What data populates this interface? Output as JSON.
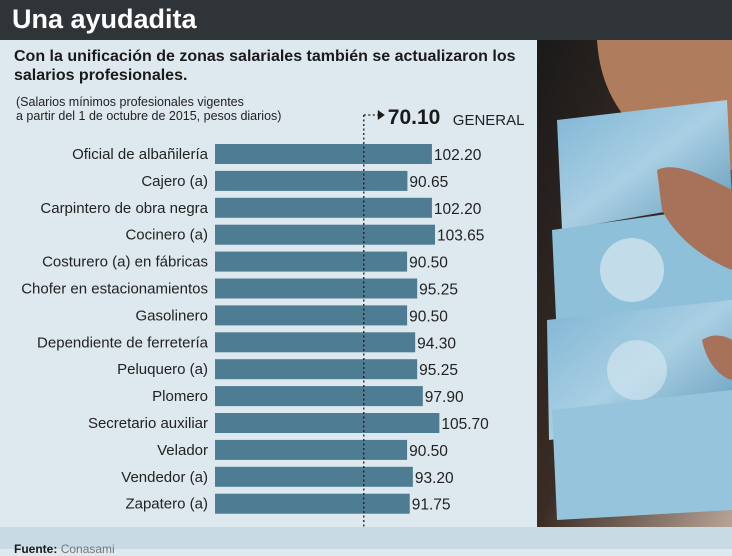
{
  "header": {
    "title": "Una ayudadita"
  },
  "subtitle": "Con la unificación de zonas salariales también se actualizaron los salarios profesionales.",
  "note_lines": [
    "(Salarios mínimos profesionales vigentes",
    "a partir del 1 de octubre de 2015, pesos diarios)"
  ],
  "source": {
    "label": "Fuente:",
    "value": "Conasami"
  },
  "colors": {
    "bar": "#4d7c93",
    "header_bg": "#2f3438",
    "background": "#dde8ef"
  },
  "chart_data": {
    "type": "bar",
    "orientation": "horizontal",
    "title": "Una ayudadita",
    "xlabel": "",
    "ylabel": "",
    "xlim": [
      0,
      106
    ],
    "categories": [
      "Oficial de albañilería",
      "Cajero (a)",
      "Carpintero de obra negra",
      "Cocinero (a)",
      "Costurero (a) en fábricas",
      "Chofer en estacionamientos",
      "Gasolinero",
      "Dependiente de ferretería",
      "Peluquero (a)",
      "Plomero",
      "Secretario auxiliar",
      "Velador",
      "Vendedor (a)",
      "Zapatero (a)"
    ],
    "values": [
      102.2,
      90.65,
      102.2,
      103.65,
      90.5,
      95.25,
      90.5,
      94.3,
      95.25,
      97.9,
      105.7,
      90.5,
      93.2,
      91.75
    ],
    "value_labels": [
      "102.20",
      "90.65",
      "102.20",
      "103.65",
      "90.50",
      "95.25",
      "90.50",
      "94.30",
      "95.25",
      "97.90",
      "105.70",
      "90.50",
      "93.20",
      "91.75"
    ],
    "reference_line": {
      "value": 70.1,
      "value_label": "70.10",
      "label": "GENERAL"
    }
  }
}
